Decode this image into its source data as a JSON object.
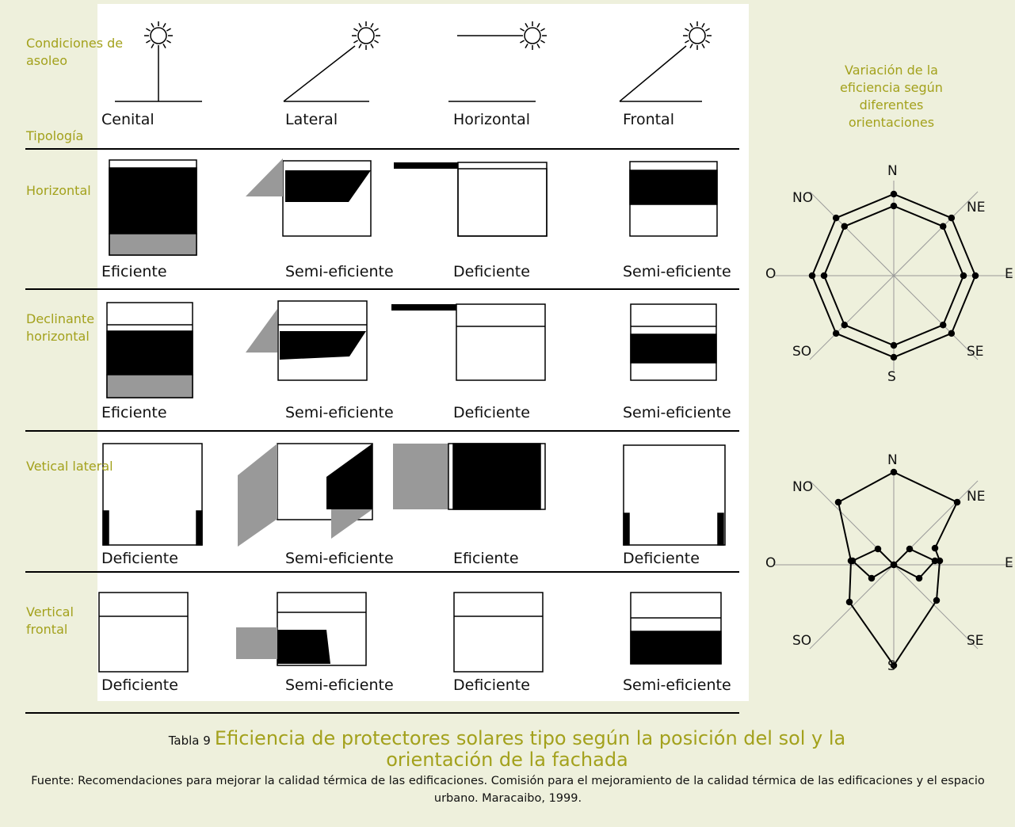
{
  "left": {
    "conditions": "Condiciones de asoleo",
    "typology": "Tipología"
  },
  "columns": [
    "Cenital",
    "Lateral",
    "Horizontal",
    "Frontal"
  ],
  "rows": [
    {
      "label": "Horizontal",
      "ratings": [
        "Eficiente",
        "Semi-eficiente",
        "Deficiente",
        "Semi-eficiente"
      ]
    },
    {
      "label": "Declinante horizontal",
      "ratings": [
        "Eficiente",
        "Semi-eficiente",
        "Deficiente",
        "Semi-eficiente"
      ]
    },
    {
      "label": "Vetical lateral",
      "ratings": [
        "Deficiente",
        "Semi-eficiente",
        "Eficiente",
        "Deficiente"
      ]
    },
    {
      "label": "Vertical frontal",
      "ratings": [
        "Deficiente",
        "Semi-eficiente",
        "Deficiente",
        "Semi-eficiente"
      ]
    }
  ],
  "side": {
    "title": "Variación de la eficiencia según diferentes orientaciones",
    "radars": [
      {
        "labels": [
          "N",
          "NE",
          "E",
          "SE",
          "S",
          "SO",
          "O",
          "NO"
        ]
      },
      {
        "labels": [
          "N",
          "NE",
          "E",
          "SE",
          "S",
          "SO",
          "O",
          "NO"
        ]
      }
    ]
  },
  "caption": {
    "number": "Tabla 9",
    "title": "Eficiencia de protectores solares tipo según la posición del sol y la orientación de la fachada",
    "source": "Fuente: Recomendaciones para mejorar la calidad térmica de las edificaciones. Comisión para el mejoramiento de la calidad térmica de las edificaciones y el espacio urbano. Maracaibo, 1999."
  }
}
